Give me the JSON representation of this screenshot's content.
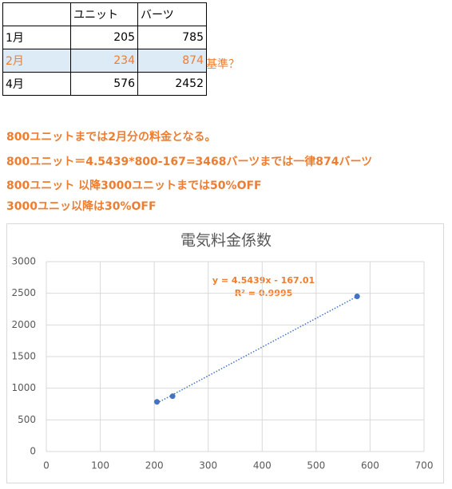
{
  "table": {
    "header": [
      "ユニット",
      "バーツ"
    ],
    "rows": [
      [
        "1月",
        "205",
        "785"
      ],
      [
        "2月",
        "234",
        "874"
      ],
      [
        "4月",
        "576",
        "2452"
      ]
    ],
    "row_note": "基準？"
  },
  "notes": [
    "800ユニットまでは2月分の料金となる。",
    "800ユニット＝4.5439*800-167=3468バーツまでは一律874バーツ",
    "800ユニット 以降3000ユニットまでは50%OFF",
    "3000ユニッ以降は30%OFF"
  ],
  "chart_data": {
    "type": "scatter",
    "title": "電気料金係数",
    "x": [
      205,
      234,
      576
    ],
    "series": [
      {
        "color": "#4472c4",
        "values": [
          785,
          874,
          2452
        ]
      }
    ],
    "trendline": {
      "style": "dotted",
      "equation": "y = 4.5439x - 167.01",
      "r_squared": "R² = 0.9995"
    },
    "xlim": [
      0,
      700
    ],
    "xticks": [
      0,
      100,
      200,
      300,
      400,
      500,
      600,
      700
    ],
    "ylim": [
      0,
      3000
    ],
    "yticks": [
      0,
      500,
      1000,
      1500,
      2000,
      2500,
      3000
    ],
    "grid": true
  }
}
